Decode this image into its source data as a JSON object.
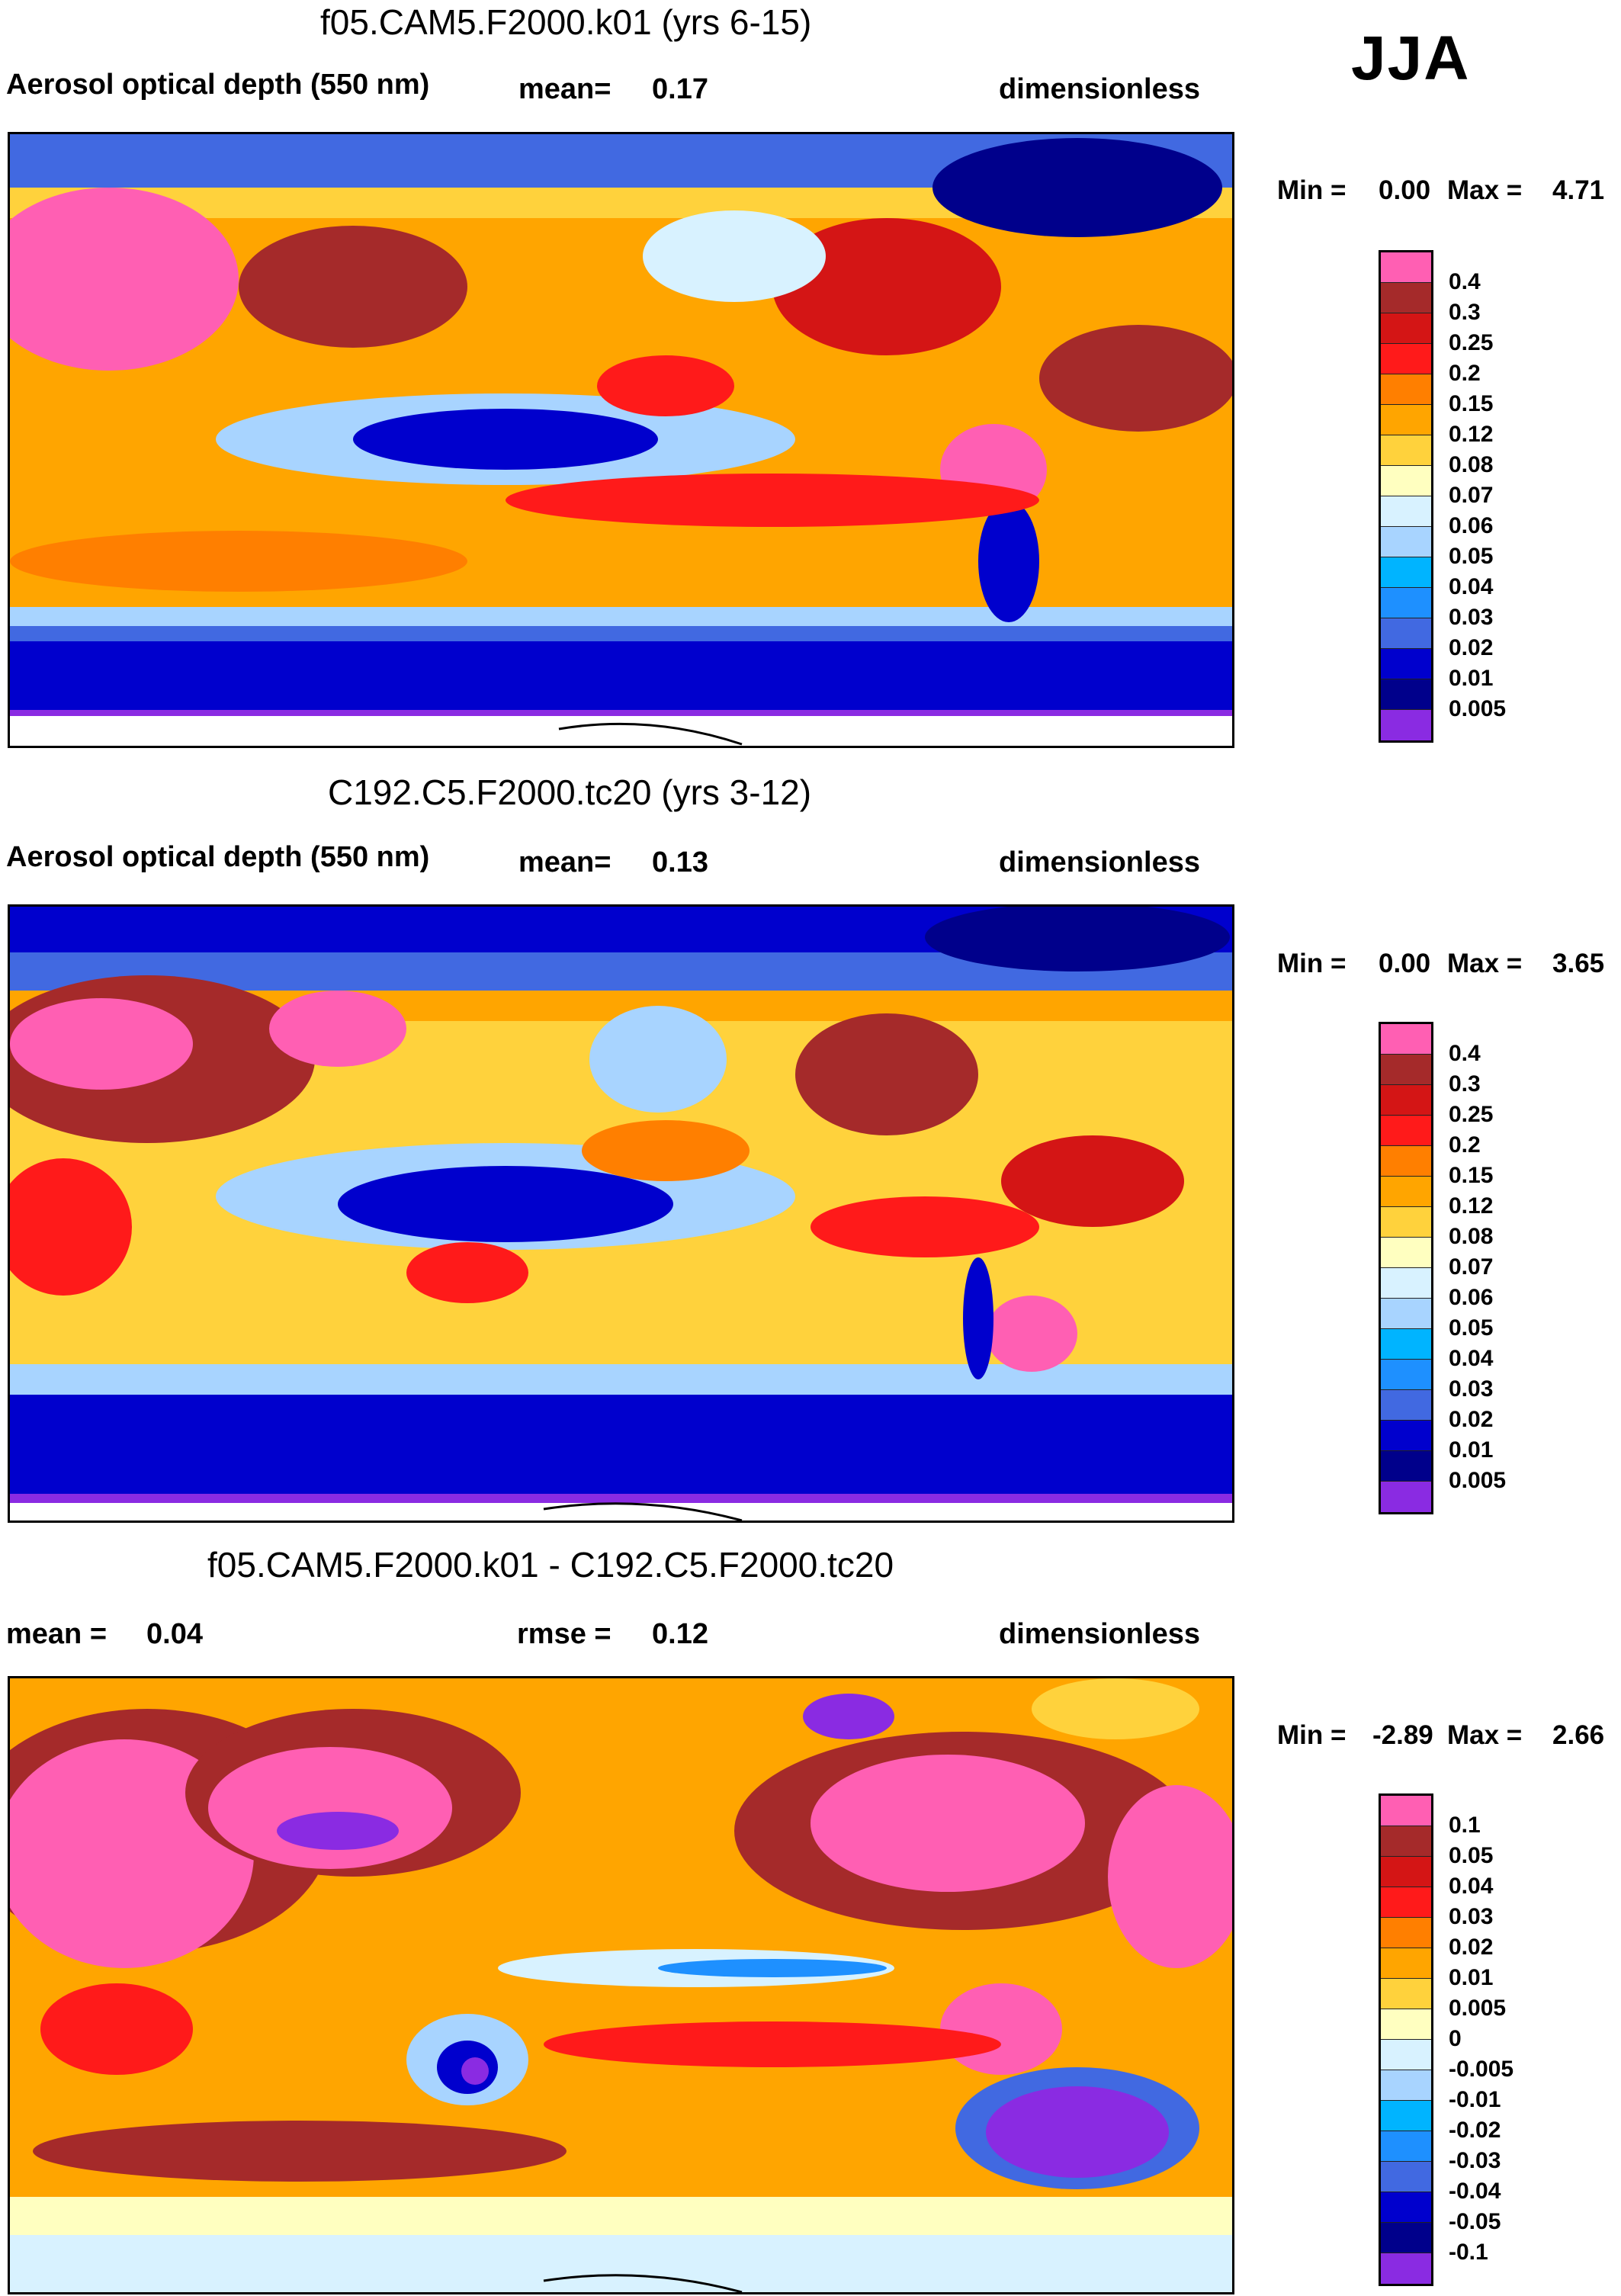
{
  "season": "JJA",
  "panels": [
    {
      "id": "p1",
      "title": "f05.CAM5.F2000.k01 (yrs 6-15)",
      "left_label": "Aerosol optical depth (550 nm)",
      "mid_label": "mean=",
      "mid_value": "0.17",
      "units": "dimensionless",
      "min_label": "Min =",
      "min_value": "0.00",
      "max_label": "Max =",
      "max_value": "4.71",
      "colorbar": {
        "ticks": [
          "0.4",
          "0.3",
          "0.25",
          "0.2",
          "0.15",
          "0.12",
          "0.08",
          "0.07",
          "0.06",
          "0.05",
          "0.04",
          "0.03",
          "0.02",
          "0.01",
          "0.005"
        ],
        "colors": [
          "#ff5fb3",
          "#a52a2a",
          "#d41515",
          "#ff1a1a",
          "#ff7f00",
          "#ffa500",
          "#ffd23c",
          "#ffffc0",
          "#d8f2ff",
          "#a8d4ff",
          "#00b4ff",
          "#1e90ff",
          "#4169e1",
          "#0000cd",
          "#00008b",
          "#8a2be2"
        ]
      }
    },
    {
      "id": "p2",
      "title": "C192.C5.F2000.tc20 (yrs 3-12)",
      "left_label": "Aerosol optical depth (550 nm)",
      "mid_label": "mean=",
      "mid_value": "0.13",
      "units": "dimensionless",
      "min_label": "Min =",
      "min_value": "0.00",
      "max_label": "Max =",
      "max_value": "3.65",
      "colorbar": {
        "ticks": [
          "0.4",
          "0.3",
          "0.25",
          "0.2",
          "0.15",
          "0.12",
          "0.08",
          "0.07",
          "0.06",
          "0.05",
          "0.04",
          "0.03",
          "0.02",
          "0.01",
          "0.005"
        ],
        "colors": [
          "#ff5fb3",
          "#a52a2a",
          "#d41515",
          "#ff1a1a",
          "#ff7f00",
          "#ffa500",
          "#ffd23c",
          "#ffffc0",
          "#d8f2ff",
          "#a8d4ff",
          "#00b4ff",
          "#1e90ff",
          "#4169e1",
          "#0000cd",
          "#00008b",
          "#8a2be2"
        ]
      }
    },
    {
      "id": "p3",
      "title": "f05.CAM5.F2000.k01 - C192.C5.F2000.tc20",
      "left_label": "mean =",
      "left_value": "0.04",
      "mid_label": "rmse =",
      "mid_value": "0.12",
      "units": "dimensionless",
      "min_label": "Min =",
      "min_value": "-2.89",
      "max_label": "Max =",
      "max_value": "2.66",
      "colorbar": {
        "ticks": [
          "0.1",
          "0.05",
          "0.04",
          "0.03",
          "0.02",
          "0.01",
          "0.005",
          "0",
          "-0.005",
          "-0.01",
          "-0.02",
          "-0.03",
          "-0.04",
          "-0.05",
          "-0.1"
        ],
        "colors": [
          "#ff5fb3",
          "#a52a2a",
          "#d41515",
          "#ff1a1a",
          "#ff7f00",
          "#ffa500",
          "#ffd23c",
          "#ffffc0",
          "#d8f2ff",
          "#a8d4ff",
          "#00b4ff",
          "#1e90ff",
          "#4169e1",
          "#0000cd",
          "#00008b",
          "#8a2be2"
        ]
      }
    }
  ]
}
